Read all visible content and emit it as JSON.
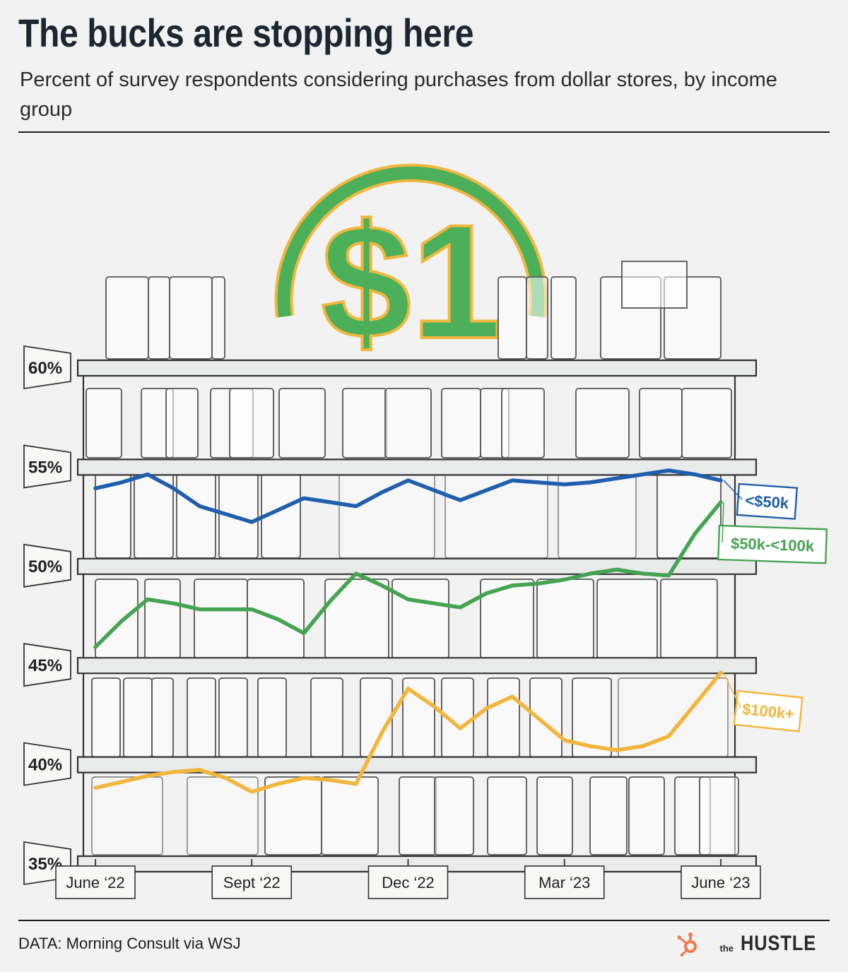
{
  "header": {
    "title": "The bucks are stopping here",
    "subtitle": "Percent of survey respondents considering purchases from dollar stores, by income group"
  },
  "decoration": {
    "coin_label": "$1",
    "coin_color": "#4caf5a",
    "coin_outline": "#f2b63c"
  },
  "footer": {
    "source": "DATA: Morning Consult via WSJ",
    "brand_small": "the",
    "brand_name": "HUSTLE",
    "brand_icon": "hubspot-sprocket-icon"
  },
  "chart_data": {
    "type": "line",
    "title": "The bucks are stopping here",
    "subtitle": "Percent of survey respondents considering purchases from dollar stores, by income group",
    "ylim": [
      35,
      60
    ],
    "yticks": [
      60,
      55,
      50,
      45,
      40,
      35
    ],
    "ytick_labels": [
      "60%",
      "55%",
      "50%",
      "45%",
      "40%",
      "35%"
    ],
    "x_tick_labels": [
      "June ‘22",
      "Sept ‘22",
      "Dec ‘22",
      "Mar ‘23",
      "June ‘23"
    ],
    "x_tick_index": [
      0,
      6,
      12,
      18,
      24
    ],
    "x_count": 25,
    "legend_placement": "series labels at right end of lines",
    "series": [
      {
        "name": "<$50k",
        "color": "#1f5fae",
        "values": [
          53.9,
          54.2,
          54.6,
          53.9,
          53.0,
          52.6,
          52.2,
          52.8,
          53.4,
          53.2,
          53.0,
          53.7,
          54.3,
          53.8,
          53.3,
          53.8,
          54.3,
          54.2,
          54.1,
          54.2,
          54.4,
          54.6,
          54.8,
          54.6,
          54.3
        ]
      },
      {
        "name": "$50k-<100k",
        "color": "#45a452",
        "values": [
          45.9,
          47.2,
          48.3,
          48.1,
          47.8,
          47.8,
          47.8,
          47.3,
          46.6,
          48.2,
          49.6,
          49.0,
          48.3,
          48.1,
          47.9,
          48.6,
          49.0,
          49.1,
          49.3,
          49.6,
          49.8,
          49.6,
          49.5,
          51.6,
          53.2
        ]
      },
      {
        "name": "$100k+",
        "color": "#f2b63c",
        "values": [
          38.8,
          39.1,
          39.4,
          39.6,
          39.7,
          39.3,
          38.6,
          39.0,
          39.3,
          39.2,
          39.0,
          41.6,
          43.8,
          42.9,
          41.8,
          42.8,
          43.4,
          42.3,
          41.2,
          40.9,
          40.7,
          40.9,
          41.4,
          43.0,
          44.6
        ]
      }
    ]
  }
}
